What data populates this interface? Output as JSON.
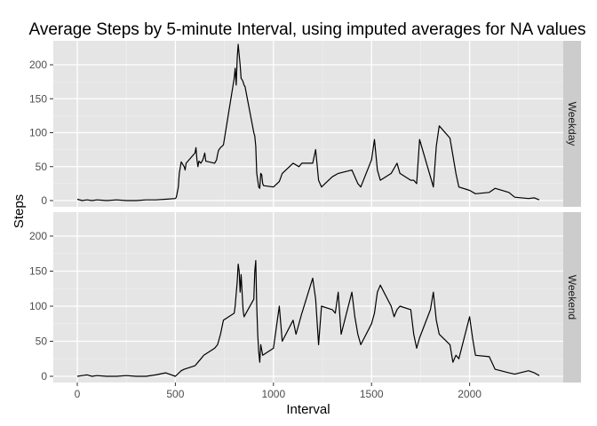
{
  "chart_data": {
    "type": "line",
    "title": "Average Steps by 5-minute Interval, using imputed averages for NA values",
    "xlabel": "Interval",
    "ylabel": "Steps",
    "xlim": [
      0,
      2355
    ],
    "ylim": [
      0,
      230
    ],
    "x_ticks": [
      0,
      500,
      1000,
      1500,
      2000
    ],
    "y_ticks": [
      0,
      50,
      100,
      150,
      200
    ],
    "grid": true,
    "facet_by": "row",
    "background": "#e5e5e5",
    "grid_color": "#ffffff",
    "strip_color": "#cccccc",
    "line_color": "#000000",
    "panels": [
      {
        "name": "Weekday",
        "x": [
          0,
          25,
          50,
          75,
          100,
          150,
          200,
          250,
          300,
          350,
          400,
          450,
          500,
          505,
          515,
          520,
          530,
          545,
          550,
          555,
          600,
          605,
          610,
          615,
          620,
          630,
          640,
          645,
          650,
          655,
          700,
          710,
          715,
          720,
          730,
          745,
          800,
          805,
          810,
          815,
          820,
          825,
          830,
          835,
          840,
          845,
          850,
          855,
          900,
          905,
          910,
          915,
          920,
          925,
          930,
          935,
          940,
          945,
          950,
          1000,
          1030,
          1045,
          1100,
          1130,
          1145,
          1200,
          1215,
          1230,
          1245,
          1300,
          1330,
          1400,
          1430,
          1445,
          1500,
          1515,
          1530,
          1545,
          1600,
          1630,
          1645,
          1700,
          1715,
          1730,
          1745,
          1800,
          1815,
          1830,
          1845,
          1900,
          1930,
          1945,
          2000,
          2030,
          2100,
          2130,
          2200,
          2230,
          2300,
          2330,
          2355
        ],
        "y": [
          2,
          0,
          1,
          0,
          1,
          0,
          1,
          0,
          0,
          1,
          1,
          2,
          3,
          5,
          20,
          40,
          57,
          50,
          45,
          55,
          70,
          78,
          60,
          50,
          58,
          55,
          60,
          65,
          70,
          58,
          55,
          60,
          68,
          74,
          78,
          82,
          180,
          195,
          170,
          210,
          230,
          215,
          200,
          180,
          178,
          175,
          170,
          168,
          100,
          95,
          80,
          40,
          30,
          20,
          18,
          40,
          38,
          25,
          22,
          20,
          28,
          40,
          55,
          50,
          55,
          55,
          75,
          30,
          20,
          35,
          40,
          45,
          25,
          20,
          60,
          90,
          45,
          30,
          40,
          55,
          40,
          30,
          30,
          25,
          90,
          35,
          20,
          80,
          110,
          92,
          40,
          20,
          15,
          10,
          12,
          18,
          12,
          5,
          3,
          4,
          1
        ]
      },
      {
        "name": "Weekend",
        "x": [
          0,
          25,
          50,
          75,
          100,
          150,
          200,
          250,
          300,
          350,
          400,
          450,
          500,
          530,
          545,
          600,
          615,
          630,
          645,
          700,
          715,
          730,
          745,
          800,
          805,
          815,
          820,
          825,
          830,
          835,
          840,
          845,
          850,
          900,
          905,
          910,
          915,
          920,
          925,
          930,
          935,
          945,
          1000,
          1015,
          1030,
          1045,
          1100,
          1115,
          1130,
          1145,
          1200,
          1215,
          1230,
          1245,
          1300,
          1315,
          1330,
          1345,
          1400,
          1415,
          1430,
          1445,
          1500,
          1515,
          1530,
          1545,
          1600,
          1615,
          1630,
          1645,
          1700,
          1715,
          1730,
          1745,
          1800,
          1815,
          1830,
          1845,
          1900,
          1915,
          1930,
          1945,
          2000,
          2015,
          2030,
          2100,
          2130,
          2200,
          2230,
          2300,
          2330,
          2355
        ],
        "y": [
          0,
          1,
          2,
          0,
          1,
          0,
          0,
          1,
          0,
          0,
          2,
          5,
          0,
          8,
          10,
          15,
          20,
          25,
          30,
          40,
          45,
          60,
          80,
          90,
          100,
          135,
          160,
          150,
          120,
          145,
          120,
          95,
          85,
          110,
          150,
          165,
          100,
          60,
          35,
          20,
          45,
          30,
          40,
          70,
          100,
          50,
          80,
          60,
          75,
          90,
          140,
          110,
          45,
          100,
          95,
          90,
          120,
          60,
          120,
          85,
          60,
          45,
          75,
          90,
          120,
          130,
          100,
          85,
          95,
          100,
          95,
          60,
          40,
          55,
          95,
          120,
          80,
          60,
          45,
          20,
          30,
          25,
          85,
          55,
          30,
          28,
          10,
          5,
          3,
          8,
          5,
          1
        ]
      }
    ]
  }
}
